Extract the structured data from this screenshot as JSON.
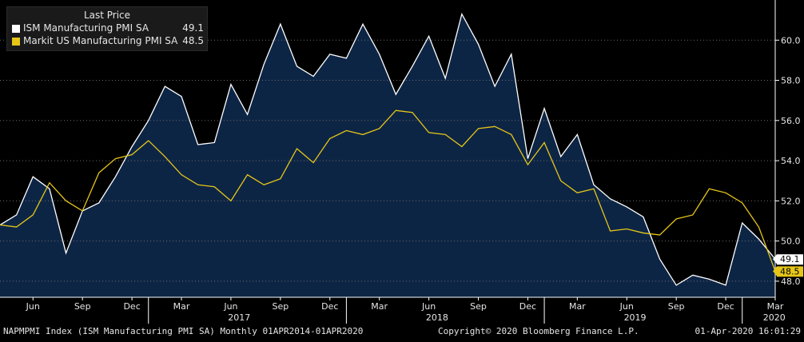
{
  "legend": {
    "title": "Last Price",
    "items": [
      {
        "name": "ISM Manufacturing PMI SA",
        "value": "49.1",
        "color": "#ffffff"
      },
      {
        "name": "Markit US Manufacturing PMI SA",
        "value": "48.5",
        "color": "#e6c619"
      }
    ]
  },
  "footer": {
    "left": "NAPMPMI Index (ISM Manufacturing PMI SA)  Monthly 01APR2014-01APR2020",
    "center": "Copyright© 2020 Bloomberg Finance L.P.",
    "right": "01-Apr-2020 16:01:29"
  },
  "chart_data": {
    "type": "area",
    "x": [
      "2016-04",
      "2016-05",
      "2016-06",
      "2016-07",
      "2016-08",
      "2016-09",
      "2016-10",
      "2016-11",
      "2016-12",
      "2017-01",
      "2017-02",
      "2017-03",
      "2017-04",
      "2017-05",
      "2017-06",
      "2017-07",
      "2017-08",
      "2017-09",
      "2017-10",
      "2017-11",
      "2017-12",
      "2018-01",
      "2018-02",
      "2018-03",
      "2018-04",
      "2018-05",
      "2018-06",
      "2018-07",
      "2018-08",
      "2018-09",
      "2018-10",
      "2018-11",
      "2018-12",
      "2019-01",
      "2019-02",
      "2019-03",
      "2019-04",
      "2019-05",
      "2019-06",
      "2019-07",
      "2019-08",
      "2019-09",
      "2019-10",
      "2019-11",
      "2019-12",
      "2020-01",
      "2020-02",
      "2020-03"
    ],
    "series": [
      {
        "name": "ISM Manufacturing PMI SA",
        "color": "#ffffff",
        "fill": "#0d2545",
        "values": [
          50.8,
          51.3,
          53.2,
          52.6,
          49.4,
          51.5,
          51.9,
          53.2,
          54.7,
          56.0,
          57.7,
          57.2,
          54.8,
          54.9,
          57.8,
          56.3,
          58.8,
          60.8,
          58.7,
          58.2,
          59.3,
          59.1,
          60.8,
          59.3,
          57.3,
          58.7,
          60.2,
          58.1,
          61.3,
          59.8,
          57.7,
          59.3,
          54.1,
          56.6,
          54.2,
          55.3,
          52.8,
          52.1,
          51.7,
          51.2,
          49.1,
          47.8,
          48.3,
          48.1,
          47.8,
          50.9,
          50.1,
          49.1
        ]
      },
      {
        "name": "Markit US Manufacturing PMI SA",
        "color": "#e6c619",
        "values": [
          50.8,
          50.7,
          51.3,
          52.9,
          52.0,
          51.5,
          53.4,
          54.1,
          54.3,
          55.0,
          54.2,
          53.3,
          52.8,
          52.7,
          52.0,
          53.3,
          52.8,
          53.1,
          54.6,
          53.9,
          55.1,
          55.5,
          55.3,
          55.6,
          56.5,
          56.4,
          55.4,
          55.3,
          54.7,
          55.6,
          55.7,
          55.3,
          53.8,
          54.9,
          53.0,
          52.4,
          52.6,
          50.5,
          50.6,
          50.4,
          50.3,
          51.1,
          51.3,
          52.6,
          52.4,
          51.9,
          50.7,
          48.5
        ]
      }
    ],
    "y_axis": {
      "ticks": [
        "48.0",
        "50.0",
        "52.0",
        "54.0",
        "56.0",
        "58.0",
        "60.0"
      ],
      "range": [
        47.2,
        62.0
      ],
      "side": "right"
    },
    "x_axis": {
      "month_ticks": [
        {
          "x": "2016-06",
          "label": "Jun"
        },
        {
          "x": "2016-09",
          "label": "Sep"
        },
        {
          "x": "2016-12",
          "label": "Dec"
        },
        {
          "x": "2017-03",
          "label": "Mar"
        },
        {
          "x": "2017-06",
          "label": "Jun"
        },
        {
          "x": "2017-09",
          "label": "Sep"
        },
        {
          "x": "2017-12",
          "label": "Dec"
        },
        {
          "x": "2018-03",
          "label": "Mar"
        },
        {
          "x": "2018-06",
          "label": "Jun"
        },
        {
          "x": "2018-09",
          "label": "Sep"
        },
        {
          "x": "2018-12",
          "label": "Dec"
        },
        {
          "x": "2019-03",
          "label": "Mar"
        },
        {
          "x": "2019-06",
          "label": "Jun"
        },
        {
          "x": "2019-09",
          "label": "Sep"
        },
        {
          "x": "2019-12",
          "label": "Dec"
        },
        {
          "x": "2020-03",
          "label": "Mar"
        }
      ],
      "year_labels": [
        {
          "x": "2017-01",
          "label": "2017"
        },
        {
          "x": "2018-01",
          "label": "2018"
        },
        {
          "x": "2019-01",
          "label": "2019"
        },
        {
          "x": "2020-01",
          "label": "2020"
        }
      ]
    },
    "last_value_labels": [
      {
        "series": "ISM Manufacturing PMI SA",
        "value": "49.1",
        "bg": "#ffffff",
        "fg": "#000000"
      },
      {
        "series": "Markit US Manufacturing PMI SA",
        "value": "48.5",
        "bg": "#e6c619",
        "fg": "#000000"
      }
    ],
    "grid": "horizontal dotted",
    "legend_position": "top-left"
  }
}
